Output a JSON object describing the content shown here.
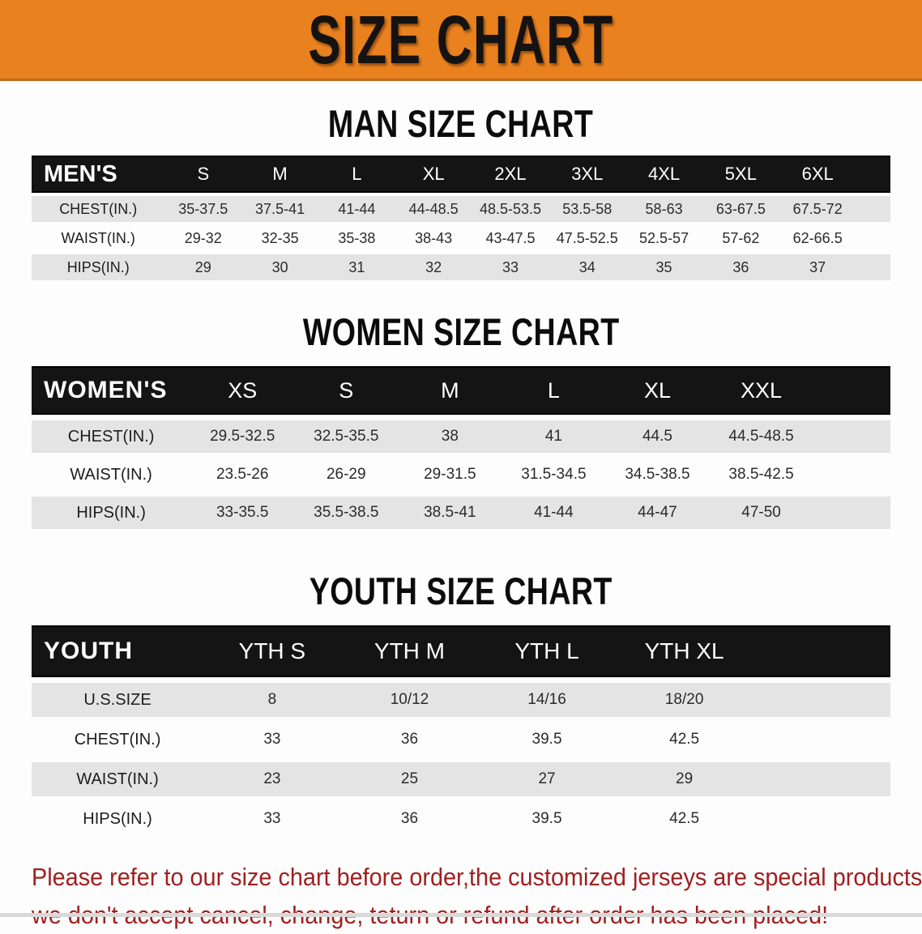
{
  "banner": {
    "title": "SIZE CHART"
  },
  "colors": {
    "accent_orange": "#e8811e",
    "band_black": "#141414",
    "row_shade_gray": "#e4e4e4",
    "disclaimer_red": "#a02020"
  },
  "sections": [
    {
      "title": "MAN SIZE CHART",
      "header_label": "MEN'S",
      "columns": [
        "S",
        "M",
        "L",
        "XL",
        "2XL",
        "3XL",
        "4XL",
        "5XL",
        "6XL"
      ],
      "rows": [
        {
          "label": "CHEST(IN.)",
          "values": [
            "35-37.5",
            "37.5-41",
            "41-44",
            "44-48.5",
            "48.5-53.5",
            "53.5-58",
            "58-63",
            "63-67.5",
            "67.5-72"
          ]
        },
        {
          "label": "WAIST(IN.)",
          "values": [
            "29-32",
            "32-35",
            "35-38",
            "38-43",
            "43-47.5",
            "47.5-52.5",
            "52.5-57",
            "57-62",
            "62-66.5"
          ]
        },
        {
          "label": "HIPS(IN.)",
          "values": [
            "29",
            "30",
            "31",
            "32",
            "33",
            "34",
            "35",
            "36",
            "37"
          ]
        }
      ]
    },
    {
      "title": "WOMEN SIZE CHART",
      "header_label": "WOMEN'S",
      "columns": [
        "XS",
        "S",
        "M",
        "L",
        "XL",
        "XXL"
      ],
      "rows": [
        {
          "label": "CHEST(IN.)",
          "values": [
            "29.5-32.5",
            "32.5-35.5",
            "38",
            "41",
            "44.5",
            "44.5-48.5"
          ]
        },
        {
          "label": "WAIST(IN.)",
          "values": [
            "23.5-26",
            "26-29",
            "29-31.5",
            "31.5-34.5",
            "34.5-38.5",
            "38.5-42.5"
          ]
        },
        {
          "label": "HIPS(IN.)",
          "values": [
            "33-35.5",
            "35.5-38.5",
            "38.5-41",
            "41-44",
            "44-47",
            "47-50"
          ]
        }
      ]
    },
    {
      "title": "YOUTH SIZE CHART",
      "header_label": "YOUTH",
      "columns": [
        "YTH S",
        "YTH M",
        "YTH L",
        "YTH XL"
      ],
      "rows": [
        {
          "label": "U.S.SIZE",
          "values": [
            "8",
            "10/12",
            "14/16",
            "18/20"
          ]
        },
        {
          "label": "CHEST(IN.)",
          "values": [
            "33",
            "36",
            "39.5",
            "42.5"
          ]
        },
        {
          "label": "WAIST(IN.)",
          "values": [
            "23",
            "25",
            "27",
            "29"
          ]
        },
        {
          "label": "HIPS(IN.)",
          "values": [
            "33",
            "36",
            "39.5",
            "42.5"
          ]
        }
      ]
    }
  ],
  "disclaimer": {
    "line1": "Please refer to our size chart before order,the customized jerseys are special products,",
    "line2": "we don't accept cancel, change, teturn or refund after order has been placed!"
  }
}
